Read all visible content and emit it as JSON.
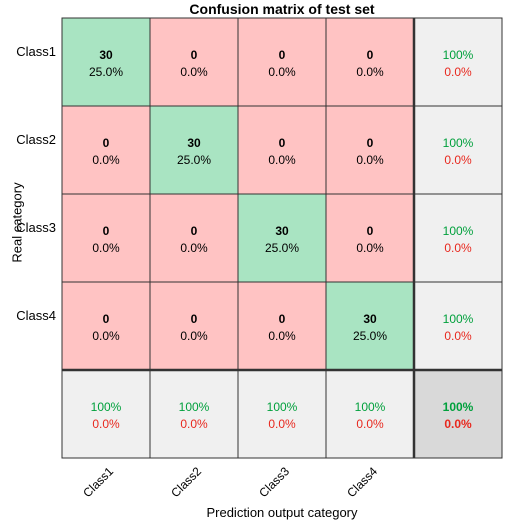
{
  "chart_data": {
    "type": "heatmap",
    "title": "Confusion matrix of test set",
    "xlabel": "Prediction output category",
    "ylabel": "Real category",
    "row_labels": [
      "Class1",
      "Class2",
      "Class3",
      "Class4"
    ],
    "col_labels": [
      "Class1",
      "Class2",
      "Class3",
      "Class4"
    ],
    "matrix": {
      "counts": [
        [
          30,
          0,
          0,
          0
        ],
        [
          0,
          30,
          0,
          0
        ],
        [
          0,
          0,
          30,
          0
        ],
        [
          0,
          0,
          0,
          30
        ]
      ],
      "percents": [
        [
          "25.0%",
          "0.0%",
          "0.0%",
          "0.0%"
        ],
        [
          "0.0%",
          "25.0%",
          "0.0%",
          "0.0%"
        ],
        [
          "0.0%",
          "0.0%",
          "25.0%",
          "0.0%"
        ],
        [
          "0.0%",
          "0.0%",
          "0.0%",
          "25.0%"
        ]
      ]
    },
    "row_summary": [
      {
        "correct": "100%",
        "error": "0.0%"
      },
      {
        "correct": "100%",
        "error": "0.0%"
      },
      {
        "correct": "100%",
        "error": "0.0%"
      },
      {
        "correct": "100%",
        "error": "0.0%"
      }
    ],
    "col_summary": [
      {
        "correct": "100%",
        "error": "0.0%"
      },
      {
        "correct": "100%",
        "error": "0.0%"
      },
      {
        "correct": "100%",
        "error": "0.0%"
      },
      {
        "correct": "100%",
        "error": "0.0%"
      }
    ],
    "overall": {
      "correct": "100%",
      "error": "0.0%"
    },
    "colors": {
      "diagonal": "#a9e4c2",
      "off_diagonal": "#ffc3c3",
      "summary": "#f0f0f0",
      "overall": "#d9d9d9",
      "correct_text": "#00a03c",
      "error_text": "#e8281e"
    }
  }
}
